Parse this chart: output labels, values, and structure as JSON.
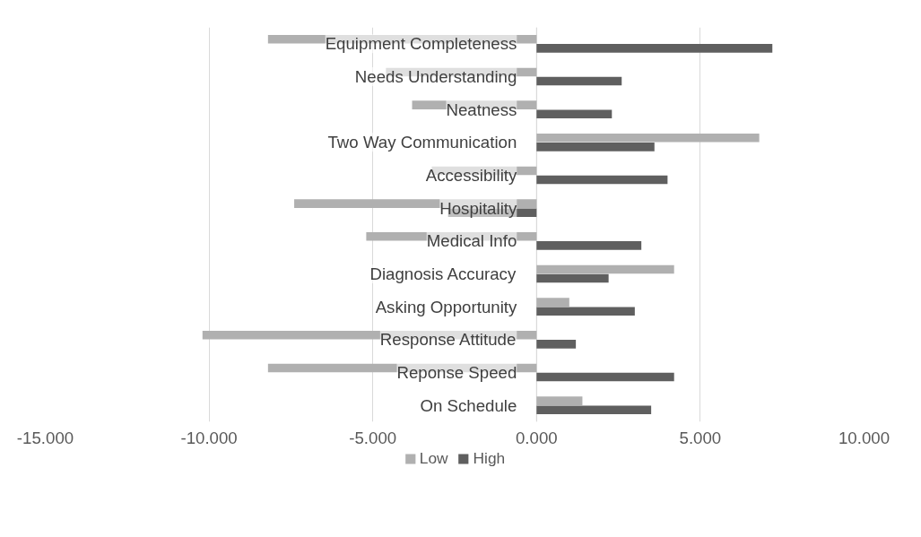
{
  "chart_data": {
    "type": "bar",
    "orientation": "horizontal",
    "categories": [
      "Equipment Completeness",
      "Needs Understanding",
      "Neatness",
      "Two Way Communication",
      "Accessibility",
      "Hospitality",
      "Medical Info",
      "Diagnosis Accuracy",
      "Asking Opportunity",
      "Response Attitude",
      "Reponse Speed",
      "On Schedule"
    ],
    "series": [
      {
        "name": "Low",
        "color": "#b0b0b0",
        "values": [
          -8.2,
          -4.6,
          -3.8,
          6.8,
          -3.2,
          -7.4,
          -5.2,
          4.2,
          1.0,
          -10.2,
          -8.2,
          1.4
        ]
      },
      {
        "name": "High",
        "color": "#5f5f5f",
        "values": [
          7.2,
          2.6,
          2.3,
          3.6,
          4.0,
          -2.7,
          3.2,
          2.2,
          3.0,
          1.2,
          4.2,
          3.5
        ]
      }
    ],
    "xlim": [
      -15,
      10
    ],
    "xticks": [
      {
        "value": -15,
        "label": "-15.000"
      },
      {
        "value": -10,
        "label": "-10.000"
      },
      {
        "value": -5,
        "label": "-5.000"
      },
      {
        "value": 0,
        "label": "0.000"
      },
      {
        "value": 5,
        "label": "5.000"
      },
      {
        "value": 10,
        "label": "10.000"
      }
    ],
    "grid": "x",
    "legend": "bottom"
  }
}
